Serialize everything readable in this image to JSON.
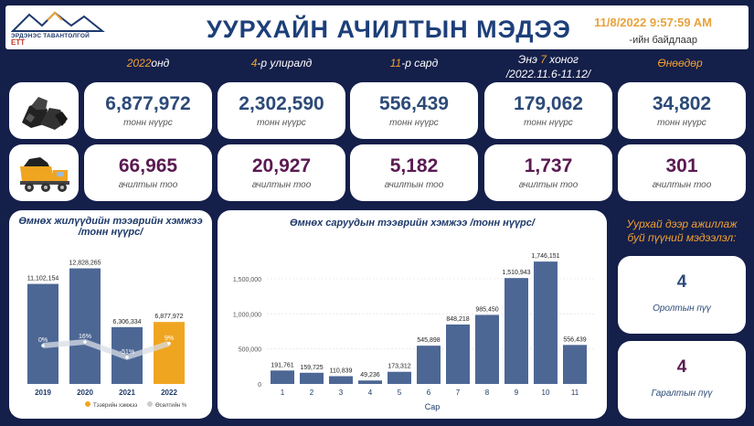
{
  "header": {
    "logo_text": "ЭРДЭНЭС ТАВАНТОЛГОЙ",
    "logo_mark": "ЕТТ",
    "title": "УУРХАЙН АЧИЛТЫН МЭДЭЭ",
    "datetime": "11/8/2022 9:57:59 AM",
    "datetime_suffix": "-ийн байдлаар"
  },
  "columns": [
    {
      "hl": "2022",
      "rest": "онд"
    },
    {
      "hl": "4",
      "rest": "-р улиралд"
    },
    {
      "hl": "11",
      "rest": "-р сард"
    },
    {
      "pre": "Энэ ",
      "hl": "7",
      "rest": " хоног",
      "sub": "/2022.11.6-11.12/"
    },
    {
      "hl": "Өнөөдөр",
      "rest": ""
    }
  ],
  "tonnage": {
    "unit": "тонн нүүрс",
    "values": [
      "6,877,972",
      "2,302,590",
      "556,439",
      "179,062",
      "34,802"
    ]
  },
  "loads": {
    "unit": "ачилтын тоо",
    "values": [
      "66,965",
      "20,927",
      "5,182",
      "1,737",
      "301"
    ]
  },
  "icons": {
    "row1": "coal-pile-icon",
    "row2": "dump-truck-icon"
  },
  "colors": {
    "background": "#141f4a",
    "bar_blue": "#4d6795",
    "bar_highlight": "#f0a521",
    "accent_orange": "#f0a030",
    "value_blue": "#2c4a78",
    "value_purple": "#5a1a52"
  },
  "yearly_chart": {
    "title_line1": "Өмнөх жилүүдийн тээврийн хэмжээ",
    "title_line2": "/тонн нүүрс/",
    "legend_series": "Тээврийн хэмжээ",
    "legend_growth": "Өсөлтийн %"
  },
  "monthly_chart": {
    "title": "Өмнөх саруудын тээврийн хэмжээ /тонн нүүрс/",
    "xlabel": "Сар"
  },
  "workers": {
    "heading": "Уурхай дээр ажиллаж буй пүүний мэдээлэл:",
    "entered_value": "4",
    "entered_label": "Оролтын пүү",
    "exited_value": "4",
    "exited_label": "Гаралтын пүү"
  },
  "chart_data": [
    {
      "type": "bar",
      "title": "Өмнөх жилүүдийн тээврийн хэмжээ /тонн нүүрс/",
      "categories": [
        "2019",
        "2020",
        "2021",
        "2022"
      ],
      "series": [
        {
          "name": "Тээврийн хэмжээ",
          "values": [
            11102154,
            12828265,
            6306334,
            6877972
          ],
          "labels": [
            "11,102,154",
            "12,828,265",
            "6,306,334",
            "6,877,972"
          ]
        },
        {
          "name": "Өсөлтийн %",
          "values": [
            0,
            16,
            -51,
            9
          ],
          "labels": [
            "0%",
            "16%",
            "-51%",
            "9%"
          ]
        }
      ],
      "highlight_category": "2022",
      "ylim": [
        0,
        14000000
      ],
      "legend_position": "bottom"
    },
    {
      "type": "bar",
      "title": "Өмнөх саруудын тээврийн хэмжээ /тонн нүүрс/",
      "xlabel": "Сар",
      "ylabel": "",
      "categories": [
        "1",
        "2",
        "3",
        "4",
        "5",
        "6",
        "7",
        "8",
        "9",
        "10",
        "11"
      ],
      "values": [
        191761,
        159725,
        110839,
        49236,
        173312,
        545898,
        848218,
        985450,
        1510943,
        1746151,
        556439
      ],
      "value_labels": [
        "191,761",
        "159,725",
        "110,839",
        "49,236",
        "173,312",
        "545,898",
        "848,218",
        "985,450",
        "1,510,943",
        "1,746,151",
        "556,439"
      ],
      "ylim": [
        0,
        1800000
      ],
      "yticks": [
        0,
        500000,
        1000000,
        1500000
      ],
      "ytick_labels": [
        "0",
        "500,000",
        "1,000,000",
        "1,500,000"
      ],
      "grid": true
    }
  ]
}
